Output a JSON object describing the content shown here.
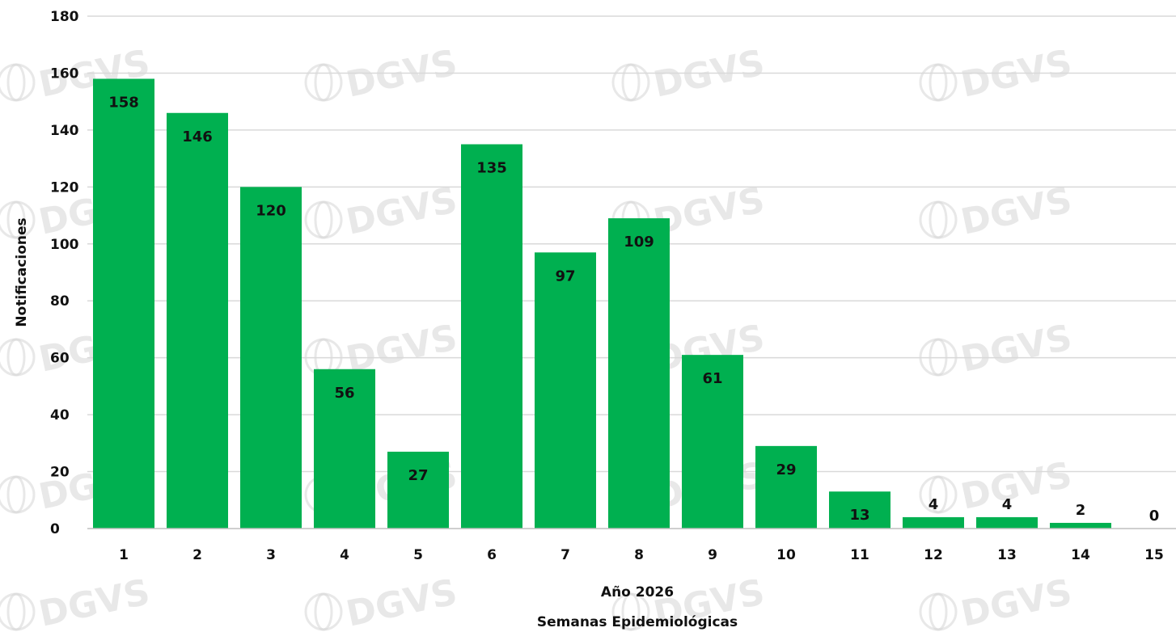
{
  "chart_data": {
    "type": "bar",
    "categories": [
      "1",
      "2",
      "3",
      "4",
      "5",
      "6",
      "7",
      "8",
      "9",
      "10",
      "11",
      "12",
      "13",
      "14",
      "15"
    ],
    "values": [
      158,
      146,
      120,
      56,
      27,
      135,
      97,
      109,
      61,
      29,
      13,
      4,
      4,
      2,
      0
    ],
    "ylabel": "Notificaciones",
    "xlabel_line1": "Año 2026",
    "xlabel_line2": "Semanas Epidemiológicas",
    "ylim": [
      0,
      180
    ],
    "yticks": [
      0,
      20,
      40,
      60,
      80,
      100,
      120,
      140,
      160,
      180
    ],
    "grid": true,
    "legend": "none",
    "bar_color": "#00b050",
    "grid_color": "#d9d9d9"
  },
  "watermark": {
    "text": "DGVS",
    "icon": "globe-icon"
  }
}
